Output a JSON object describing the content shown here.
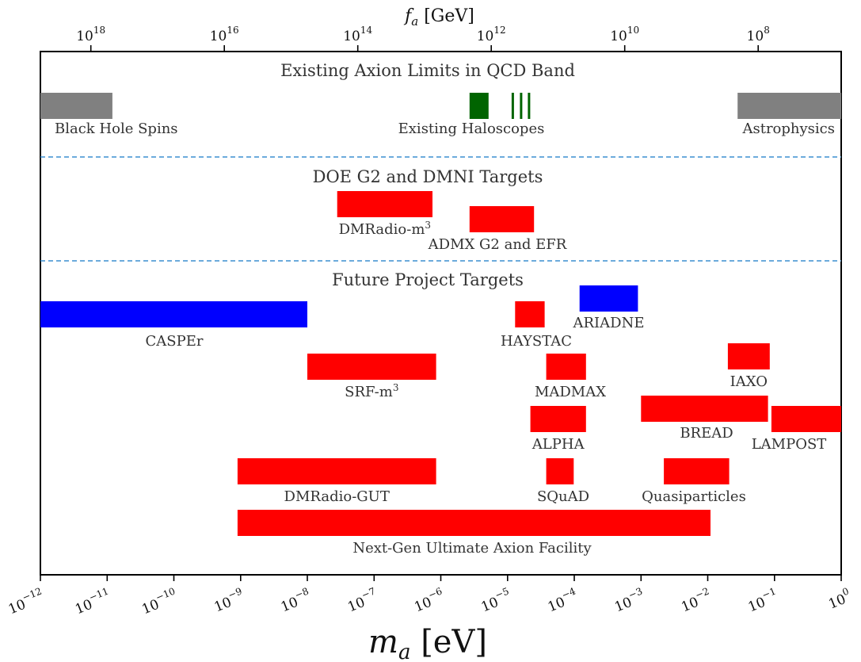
{
  "chart_data": {
    "type": "horizontal-range-bar",
    "xlabel": "m_a [eV]",
    "top_xlabel": "f_a [GeV]",
    "xscale": "log",
    "xlim": [
      1e-12,
      1
    ],
    "grid": false,
    "x_ticks": [
      {
        "value": 1e-12,
        "label": "10−12"
      },
      {
        "value": 1e-11,
        "label": "10−11"
      },
      {
        "value": 1e-10,
        "label": "10−10"
      },
      {
        "value": 1e-09,
        "label": "10−9"
      },
      {
        "value": 1e-08,
        "label": "10−8"
      },
      {
        "value": 1e-07,
        "label": "10−7"
      },
      {
        "value": 1e-06,
        "label": "10−6"
      },
      {
        "value": 1e-05,
        "label": "10−5"
      },
      {
        "value": 0.0001,
        "label": "10−4"
      },
      {
        "value": 0.001,
        "label": "10−3"
      },
      {
        "value": 0.01,
        "label": "10−2"
      },
      {
        "value": 0.1,
        "label": "10−1"
      },
      {
        "value": 1,
        "label": "100"
      }
    ],
    "top_ticks": [
      {
        "m_a": 5.7e-12,
        "label": "1018"
      },
      {
        "m_a": 5.7e-10,
        "label": "1016"
      },
      {
        "m_a": 5.7e-08,
        "label": "1014"
      },
      {
        "m_a": 5.7e-06,
        "label": "1012"
      },
      {
        "m_a": 0.00057,
        "label": "1010"
      },
      {
        "m_a": 0.057,
        "label": "108"
      }
    ],
    "sections": [
      {
        "title": "Existing Axion Limits in QCD Band",
        "bars": [
          {
            "label": "Black Hole Spins",
            "xmin": 1e-12,
            "xmax": 1.2e-11,
            "color": "#808080"
          },
          {
            "label": "Existing Haloscopes",
            "xmin": 2.7e-06,
            "xmax": 5.2e-06,
            "color": "#006400",
            "lines": [
              1.2e-05,
              1.6e-05,
              2.1e-05
            ]
          },
          {
            "label": "Astrophysics",
            "xmin": 0.028,
            "xmax": 1,
            "color": "#808080"
          }
        ]
      },
      {
        "title": "DOE G2 and DMNI Targets",
        "bars": [
          {
            "label": "DMRadio-m3",
            "xmin": 2.8e-08,
            "xmax": 7.5e-07,
            "color": "#ff0000"
          },
          {
            "label": "ADMX G2 and EFR",
            "xmin": 2.7e-06,
            "xmax": 2.5e-05,
            "color": "#ff0000"
          }
        ]
      },
      {
        "title": "Future Project Targets",
        "bars": [
          {
            "label": "CASPEr",
            "xmin": 1e-12,
            "xmax": 1e-08,
            "color": "#0000ff"
          },
          {
            "label": "ARIADNE",
            "xmin": 0.00012,
            "xmax": 0.0009,
            "color": "#0000ff"
          },
          {
            "label": "HAYSTAC",
            "xmin": 1.3e-05,
            "xmax": 3.6e-05,
            "color": "#ff0000"
          },
          {
            "label": "SRF-m3",
            "xmin": 1e-08,
            "xmax": 8.5e-07,
            "color": "#ff0000"
          },
          {
            "label": "MADMAX",
            "xmin": 3.8e-05,
            "xmax": 0.00015,
            "color": "#ff0000"
          },
          {
            "label": "IAXO",
            "xmin": 0.02,
            "xmax": 0.085,
            "color": "#ff0000"
          },
          {
            "label": "ALPHA",
            "xmin": 2.2e-05,
            "xmax": 0.00015,
            "color": "#ff0000"
          },
          {
            "label": "BREAD",
            "xmin": 0.001,
            "xmax": 0.08,
            "color": "#ff0000"
          },
          {
            "label": "LAMPOST",
            "xmin": 0.09,
            "xmax": 1,
            "color": "#ff0000"
          },
          {
            "label": "DMRadio-GUT",
            "xmin": 9e-10,
            "xmax": 8.5e-07,
            "color": "#ff0000"
          },
          {
            "label": "SQuAD",
            "xmin": 3.8e-05,
            "xmax": 9.8e-05,
            "color": "#ff0000"
          },
          {
            "label": "Quasiparticles",
            "xmin": 0.0022,
            "xmax": 0.021,
            "color": "#ff0000"
          },
          {
            "label": "Next-Gen Ultimate Axion Facility",
            "xmin": 9e-10,
            "xmax": 0.011,
            "color": "#ff0000"
          }
        ]
      }
    ]
  }
}
